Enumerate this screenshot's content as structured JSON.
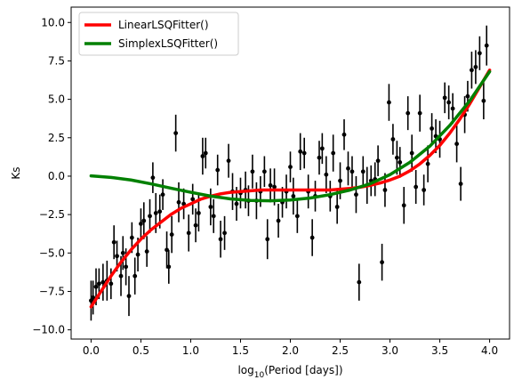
{
  "chart_data": {
    "type": "scatter",
    "title": "",
    "xlabel_prefix": "log",
    "xlabel_sub": "10",
    "xlabel_suffix": "(Period [days])",
    "ylabel": "Ks",
    "xlim": [
      -0.2,
      4.2
    ],
    "ylim": [
      -10.6,
      11.0
    ],
    "xticks": [
      0.0,
      0.5,
      1.0,
      1.5,
      2.0,
      2.5,
      3.0,
      3.5,
      4.0
    ],
    "xtick_labels": [
      "0.0",
      "0.5",
      "1.0",
      "1.5",
      "2.0",
      "2.5",
      "3.0",
      "3.5",
      "4.0"
    ],
    "yticks": [
      -10.0,
      -7.5,
      -5.0,
      -2.5,
      0.0,
      2.5,
      5.0,
      7.5,
      10.0
    ],
    "ytick_labels": [
      "−10.0",
      "−7.5",
      "−5.0",
      "−2.5",
      "0.0",
      "2.5",
      "5.0",
      "7.5",
      "10.0"
    ],
    "grid": false,
    "legend_position": "top-left",
    "series": [
      {
        "name": "LinearLSQFitter()",
        "kind": "line",
        "color": "#ff0000",
        "x": [
          0.0,
          0.1,
          0.2,
          0.3,
          0.4,
          0.5,
          0.6,
          0.7,
          0.8,
          0.9,
          1.0,
          1.1,
          1.2,
          1.3,
          1.4,
          1.5,
          1.6,
          1.7,
          1.8,
          1.9,
          2.0,
          2.1,
          2.2,
          2.3,
          2.4,
          2.5,
          2.6,
          2.7,
          2.8,
          2.9,
          3.0,
          3.1,
          3.2,
          3.3,
          3.4,
          3.5,
          3.6,
          3.7,
          3.8,
          3.9,
          4.0
        ],
        "y": [
          -8.5,
          -7.5,
          -6.5,
          -5.6,
          -4.8,
          -4.1,
          -3.5,
          -3.0,
          -2.5,
          -2.1,
          -1.8,
          -1.5,
          -1.3,
          -1.15,
          -1.05,
          -1.0,
          -0.95,
          -0.9,
          -0.9,
          -0.9,
          -0.9,
          -0.9,
          -0.9,
          -0.9,
          -0.9,
          -0.85,
          -0.8,
          -0.72,
          -0.6,
          -0.45,
          -0.25,
          0.0,
          0.35,
          0.8,
          1.35,
          2.0,
          2.8,
          3.7,
          4.7,
          5.8,
          6.9
        ]
      },
      {
        "name": "SimplexLSQFitter()",
        "kind": "line",
        "color": "#008000",
        "x": [
          0.0,
          0.2,
          0.4,
          0.6,
          0.8,
          1.0,
          1.2,
          1.4,
          1.6,
          1.8,
          2.0,
          2.2,
          2.4,
          2.6,
          2.8,
          3.0,
          3.2,
          3.4,
          3.6,
          3.8,
          4.0
        ],
        "y": [
          0.02,
          -0.08,
          -0.25,
          -0.5,
          -0.78,
          -1.05,
          -1.3,
          -1.48,
          -1.58,
          -1.6,
          -1.55,
          -1.42,
          -1.2,
          -0.9,
          -0.5,
          0.1,
          0.9,
          1.95,
          3.3,
          4.9,
          6.8
        ]
      },
      {
        "name": "",
        "kind": "errorbar",
        "color": "#000000",
        "points": [
          [
            0.0,
            -8.1,
            1.3
          ],
          [
            0.02,
            -7.9,
            1.1
          ],
          [
            0.05,
            -7.2,
            1.2
          ],
          [
            0.08,
            -7.0,
            1.0
          ],
          [
            0.12,
            -6.9,
            1.2
          ],
          [
            0.16,
            -6.8,
            1.3
          ],
          [
            0.2,
            -7.0,
            1.0
          ],
          [
            0.23,
            -4.3,
            1.1
          ],
          [
            0.26,
            -5.2,
            1.0
          ],
          [
            0.3,
            -6.5,
            1.3
          ],
          [
            0.32,
            -5.0,
            1.1
          ],
          [
            0.35,
            -5.9,
            1.2
          ],
          [
            0.38,
            -7.8,
            1.3
          ],
          [
            0.41,
            -4.0,
            1.0
          ],
          [
            0.44,
            -6.5,
            1.2
          ],
          [
            0.47,
            -5.1,
            1.1
          ],
          [
            0.5,
            -3.1,
            1.0
          ],
          [
            0.53,
            -2.9,
            1.2
          ],
          [
            0.56,
            -4.9,
            1.0
          ],
          [
            0.59,
            -2.6,
            1.1
          ],
          [
            0.62,
            -0.1,
            1.0
          ],
          [
            0.65,
            -2.4,
            1.3
          ],
          [
            0.69,
            -2.3,
            1.1
          ],
          [
            0.72,
            -1.2,
            1.0
          ],
          [
            0.76,
            -4.8,
            1.2
          ],
          [
            0.78,
            -5.9,
            1.1
          ],
          [
            0.81,
            -3.8,
            1.2
          ],
          [
            0.85,
            2.8,
            1.2
          ],
          [
            0.88,
            -1.7,
            1.3
          ],
          [
            0.93,
            -1.8,
            1.0
          ],
          [
            0.98,
            -3.7,
            1.2
          ],
          [
            1.02,
            -1.5,
            1.0
          ],
          [
            1.05,
            -3.2,
            1.1
          ],
          [
            1.08,
            -2.4,
            1.2
          ],
          [
            1.12,
            1.3,
            1.2
          ],
          [
            1.15,
            1.5,
            1.0
          ],
          [
            1.2,
            -2.0,
            1.2
          ],
          [
            1.23,
            -2.6,
            1.1
          ],
          [
            1.27,
            0.4,
            1.0
          ],
          [
            1.3,
            -4.1,
            1.2
          ],
          [
            1.34,
            -3.7,
            1.1
          ],
          [
            1.38,
            1.0,
            1.1
          ],
          [
            1.42,
            -1.0,
            1.2
          ],
          [
            1.46,
            -1.8,
            1.1
          ],
          [
            1.5,
            -1.1,
            1.0
          ],
          [
            1.55,
            -0.9,
            1.2
          ],
          [
            1.58,
            -1.6,
            1.0
          ],
          [
            1.62,
            0.3,
            1.1
          ],
          [
            1.66,
            -1.6,
            1.2
          ],
          [
            1.7,
            -1.0,
            1.0
          ],
          [
            1.74,
            0.3,
            1.0
          ],
          [
            1.77,
            -4.1,
            1.3
          ],
          [
            1.8,
            -0.6,
            1.1
          ],
          [
            1.84,
            -0.7,
            1.2
          ],
          [
            1.88,
            -2.9,
            1.1
          ],
          [
            1.92,
            -1.7,
            1.0
          ],
          [
            1.96,
            -1.0,
            1.1
          ],
          [
            2.0,
            0.6,
            1.0
          ],
          [
            2.03,
            -1.3,
            1.2
          ],
          [
            2.07,
            -2.6,
            1.1
          ],
          [
            2.1,
            1.6,
            1.2
          ],
          [
            2.14,
            1.5,
            1.0
          ],
          [
            2.18,
            -1.0,
            1.1
          ],
          [
            2.22,
            -4.0,
            1.2
          ],
          [
            2.25,
            -1.3,
            1.0
          ],
          [
            2.29,
            1.2,
            1.1
          ],
          [
            2.32,
            1.8,
            1.0
          ],
          [
            2.36,
            0.1,
            1.2
          ],
          [
            2.4,
            -1.3,
            1.0
          ],
          [
            2.43,
            1.5,
            1.2
          ],
          [
            2.47,
            -2.0,
            1.1
          ],
          [
            2.5,
            -0.3,
            1.2
          ],
          [
            2.54,
            2.7,
            1.0
          ],
          [
            2.58,
            0.5,
            1.1
          ],
          [
            2.62,
            0.3,
            1.0
          ],
          [
            2.66,
            -1.2,
            1.2
          ],
          [
            2.69,
            -6.9,
            1.2
          ],
          [
            2.73,
            0.3,
            1.0
          ],
          [
            2.77,
            -0.6,
            1.2
          ],
          [
            2.81,
            -0.3,
            1.0
          ],
          [
            2.85,
            -0.2,
            1.1
          ],
          [
            2.88,
            1.0,
            1.0
          ],
          [
            2.92,
            -5.6,
            1.2
          ],
          [
            2.95,
            -0.9,
            1.1
          ],
          [
            2.99,
            4.8,
            1.2
          ],
          [
            3.03,
            2.4,
            1.0
          ],
          [
            3.07,
            1.2,
            1.1
          ],
          [
            3.1,
            0.9,
            1.0
          ],
          [
            3.14,
            -1.9,
            1.2
          ],
          [
            3.18,
            4.1,
            1.1
          ],
          [
            3.22,
            1.5,
            1.2
          ],
          [
            3.26,
            -0.7,
            1.1
          ],
          [
            3.3,
            4.1,
            1.2
          ],
          [
            3.34,
            -0.9,
            1.0
          ],
          [
            3.38,
            0.8,
            1.2
          ],
          [
            3.42,
            3.1,
            1.0
          ],
          [
            3.46,
            2.6,
            1.1
          ],
          [
            3.5,
            2.4,
            1.2
          ],
          [
            3.55,
            5.1,
            1.0
          ],
          [
            3.59,
            4.8,
            1.1
          ],
          [
            3.63,
            4.4,
            1.0
          ],
          [
            3.67,
            2.1,
            1.2
          ],
          [
            3.71,
            -0.5,
            1.1
          ],
          [
            3.75,
            4.0,
            1.2
          ],
          [
            3.78,
            5.2,
            1.0
          ],
          [
            3.82,
            6.9,
            1.2
          ],
          [
            3.86,
            7.1,
            1.1
          ],
          [
            3.9,
            8.0,
            1.1
          ],
          [
            3.94,
            4.9,
            1.2
          ],
          [
            3.97,
            8.5,
            1.3
          ]
        ]
      }
    ]
  }
}
